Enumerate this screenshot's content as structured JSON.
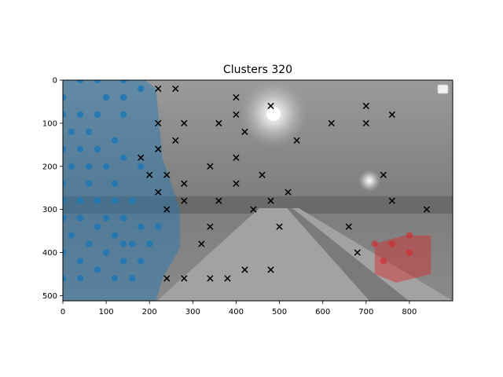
{
  "chart_data": {
    "type": "scatter",
    "title": "Clusters 320",
    "xlabel": "",
    "ylabel": "",
    "xlim": [
      0,
      900
    ],
    "ylim": [
      512,
      0
    ],
    "y_inverted": true,
    "x_ticks": [
      0,
      100,
      200,
      300,
      400,
      500,
      600,
      700,
      800
    ],
    "y_ticks": [
      0,
      100,
      200,
      300,
      400,
      500
    ],
    "grid": false,
    "legend": {
      "placement": "top-right",
      "entries": []
    },
    "background": "grayscale road scene at night with street lights",
    "series": [
      {
        "color": "#1f77b4",
        "marker": "circle",
        "hull": [
          [
            0,
            0
          ],
          [
            190,
            0
          ],
          [
            215,
            20
          ],
          [
            230,
            180
          ],
          [
            270,
            300
          ],
          [
            270,
            390
          ],
          [
            230,
            460
          ],
          [
            215,
            512
          ],
          [
            0,
            512
          ]
        ],
        "points": [
          [
            40,
            0
          ],
          [
            80,
            0
          ],
          [
            140,
            0
          ],
          [
            0,
            40
          ],
          [
            100,
            40
          ],
          [
            140,
            40
          ],
          [
            180,
            20
          ],
          [
            0,
            80
          ],
          [
            40,
            80
          ],
          [
            80,
            80
          ],
          [
            140,
            80
          ],
          [
            20,
            120
          ],
          [
            60,
            120
          ],
          [
            120,
            140
          ],
          [
            0,
            160
          ],
          [
            40,
            160
          ],
          [
            80,
            160
          ],
          [
            140,
            180
          ],
          [
            20,
            200
          ],
          [
            60,
            200
          ],
          [
            100,
            200
          ],
          [
            180,
            200
          ],
          [
            0,
            240
          ],
          [
            60,
            240
          ],
          [
            120,
            240
          ],
          [
            0,
            280
          ],
          [
            40,
            280
          ],
          [
            80,
            280
          ],
          [
            120,
            280
          ],
          [
            160,
            280
          ],
          [
            0,
            320
          ],
          [
            40,
            320
          ],
          [
            100,
            320
          ],
          [
            140,
            320
          ],
          [
            20,
            360
          ],
          [
            80,
            340
          ],
          [
            120,
            360
          ],
          [
            180,
            340
          ],
          [
            220,
            340
          ],
          [
            0,
            400
          ],
          [
            60,
            380
          ],
          [
            140,
            380
          ],
          [
            160,
            380
          ],
          [
            200,
            380
          ],
          [
            40,
            420
          ],
          [
            100,
            400
          ],
          [
            140,
            420
          ],
          [
            180,
            420
          ],
          [
            0,
            460
          ],
          [
            40,
            460
          ],
          [
            80,
            440
          ],
          [
            120,
            460
          ],
          [
            160,
            460
          ]
        ]
      },
      {
        "color": "#000000",
        "marker": "x",
        "points": [
          [
            220,
            20
          ],
          [
            260,
            20
          ],
          [
            400,
            40
          ],
          [
            480,
            60
          ],
          [
            700,
            60
          ],
          [
            220,
            100
          ],
          [
            280,
            100
          ],
          [
            360,
            100
          ],
          [
            400,
            80
          ],
          [
            620,
            100
          ],
          [
            700,
            100
          ],
          [
            760,
            80
          ],
          [
            260,
            140
          ],
          [
            420,
            120
          ],
          [
            540,
            140
          ],
          [
            180,
            180
          ],
          [
            220,
            160
          ],
          [
            400,
            180
          ],
          [
            200,
            220
          ],
          [
            240,
            220
          ],
          [
            340,
            200
          ],
          [
            460,
            220
          ],
          [
            740,
            220
          ],
          [
            220,
            260
          ],
          [
            280,
            240
          ],
          [
            400,
            240
          ],
          [
            520,
            260
          ],
          [
            240,
            300
          ],
          [
            280,
            280
          ],
          [
            360,
            280
          ],
          [
            440,
            300
          ],
          [
            480,
            280
          ],
          [
            760,
            280
          ],
          [
            840,
            300
          ],
          [
            340,
            340
          ],
          [
            500,
            340
          ],
          [
            660,
            340
          ],
          [
            320,
            380
          ],
          [
            680,
            400
          ],
          [
            420,
            440
          ],
          [
            480,
            440
          ],
          [
            240,
            460
          ],
          [
            280,
            460
          ],
          [
            340,
            460
          ],
          [
            380,
            460
          ]
        ]
      },
      {
        "color": "#d62728",
        "marker": "circle",
        "hull": [
          [
            720,
            380
          ],
          [
            790,
            360
          ],
          [
            850,
            360
          ],
          [
            850,
            450
          ],
          [
            770,
            470
          ],
          [
            720,
            450
          ]
        ],
        "points": [
          [
            720,
            380
          ],
          [
            760,
            380
          ],
          [
            800,
            360
          ],
          [
            740,
            420
          ],
          [
            800,
            400
          ]
        ]
      }
    ]
  }
}
